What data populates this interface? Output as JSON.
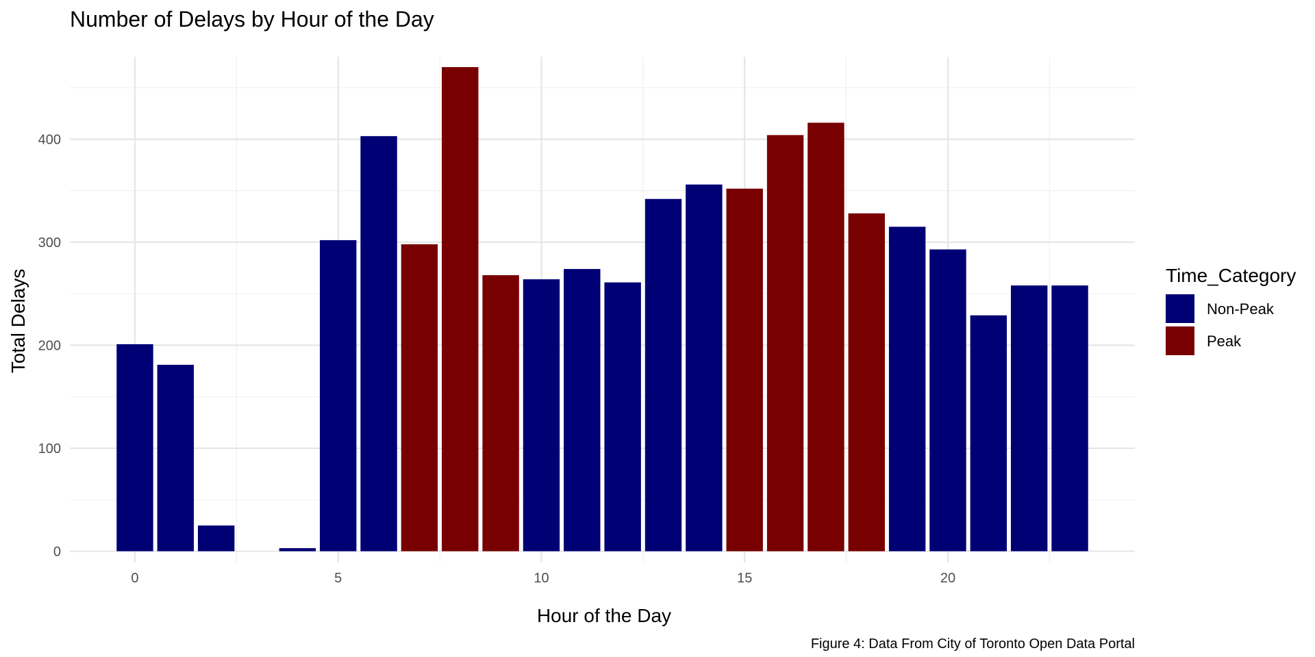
{
  "chart_data": {
    "type": "bar",
    "title": "Number of Delays by Hour of the Day",
    "xlabel": "Hour of the Day",
    "ylabel": "Total Delays",
    "caption": "Figure 4: Data From City of Toronto Open Data Portal",
    "xlim": [
      -1.6,
      24.6
    ],
    "ylim": [
      -11,
      480
    ],
    "x_ticks": [
      0,
      5,
      10,
      15,
      20
    ],
    "y_ticks": [
      0,
      100,
      200,
      300,
      400
    ],
    "grid": true,
    "legend": {
      "title": "Time_Category",
      "position": "right",
      "entries": [
        {
          "label": "Non-Peak",
          "color": "#000075"
        },
        {
          "label": "Peak",
          "color": "#780000"
        }
      ]
    },
    "bars": [
      {
        "x": 0,
        "value": 201,
        "category": "Non-Peak"
      },
      {
        "x": 1,
        "value": 181,
        "category": "Non-Peak"
      },
      {
        "x": 2,
        "value": 25,
        "category": "Non-Peak"
      },
      {
        "x": 4,
        "value": 3,
        "category": "Non-Peak"
      },
      {
        "x": 5,
        "value": 302,
        "category": "Non-Peak"
      },
      {
        "x": 6,
        "value": 403,
        "category": "Non-Peak"
      },
      {
        "x": 7,
        "value": 298,
        "category": "Peak"
      },
      {
        "x": 8,
        "value": 470,
        "category": "Peak"
      },
      {
        "x": 9,
        "value": 268,
        "category": "Peak"
      },
      {
        "x": 10,
        "value": 264,
        "category": "Non-Peak"
      },
      {
        "x": 11,
        "value": 274,
        "category": "Non-Peak"
      },
      {
        "x": 12,
        "value": 261,
        "category": "Non-Peak"
      },
      {
        "x": 13,
        "value": 342,
        "category": "Non-Peak"
      },
      {
        "x": 14,
        "value": 356,
        "category": "Non-Peak"
      },
      {
        "x": 15,
        "value": 352,
        "category": "Peak"
      },
      {
        "x": 16,
        "value": 404,
        "category": "Peak"
      },
      {
        "x": 17,
        "value": 416,
        "category": "Peak"
      },
      {
        "x": 18,
        "value": 328,
        "category": "Peak"
      },
      {
        "x": 19,
        "value": 315,
        "category": "Non-Peak"
      },
      {
        "x": 20,
        "value": 293,
        "category": "Non-Peak"
      },
      {
        "x": 21,
        "value": 229,
        "category": "Non-Peak"
      },
      {
        "x": 22,
        "value": 258,
        "category": "Non-Peak"
      },
      {
        "x": 23,
        "value": 258,
        "category": "Non-Peak"
      }
    ]
  }
}
